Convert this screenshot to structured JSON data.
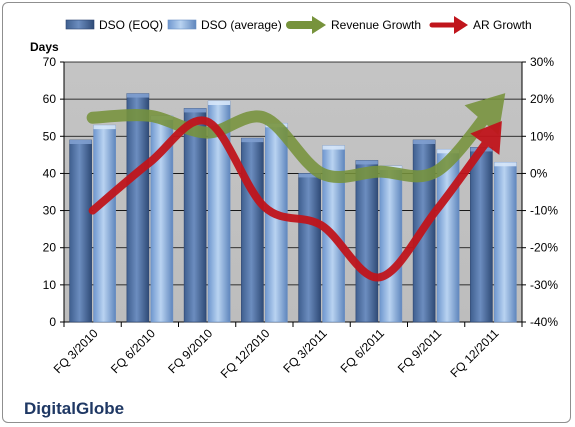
{
  "chart_data": {
    "type": "bar",
    "company": "DigitalGlobe",
    "ylabel": "Days",
    "ylim": [
      0,
      70
    ],
    "yticks": [
      "0",
      "10",
      "20",
      "30",
      "40",
      "50",
      "60",
      "70"
    ],
    "y2lim": [
      -40,
      30
    ],
    "y2ticks": [
      "-40%",
      "-30%",
      "-20%",
      "-10%",
      "0%",
      "10%",
      "20%",
      "30%"
    ],
    "grid": "horizontal",
    "legend_position": "top",
    "categories": [
      "FQ 3/2010",
      "FQ 6/2010",
      "FQ 9/2010",
      "FQ 12/2010",
      "FQ 3/2011",
      "FQ 6/2011",
      "FQ 9/2011",
      "FQ 12/2011"
    ],
    "series": [
      {
        "name": "DSO (EOQ)",
        "kind": "bar",
        "axis": "left",
        "color": "#4f6f9f",
        "values": [
          49,
          61.5,
          57.5,
          49.5,
          40,
          43.5,
          49,
          47
        ]
      },
      {
        "name": "DSO (average)",
        "kind": "bar",
        "axis": "left",
        "color": "#8fb4e3",
        "values": [
          53,
          55.5,
          59.5,
          53.5,
          47.5,
          42,
          46.5,
          43
        ]
      },
      {
        "name": "Revenue Growth",
        "kind": "arrow-line",
        "axis": "right",
        "color": "#77933c",
        "values": [
          15,
          15.5,
          11,
          15,
          0,
          0.5,
          0.5,
          18
        ]
      },
      {
        "name": "AR Growth",
        "kind": "arrow-line",
        "axis": "right",
        "color": "#c0151c",
        "values": [
          -10,
          3,
          14,
          -9,
          -14,
          -28,
          -10,
          11
        ]
      }
    ]
  }
}
